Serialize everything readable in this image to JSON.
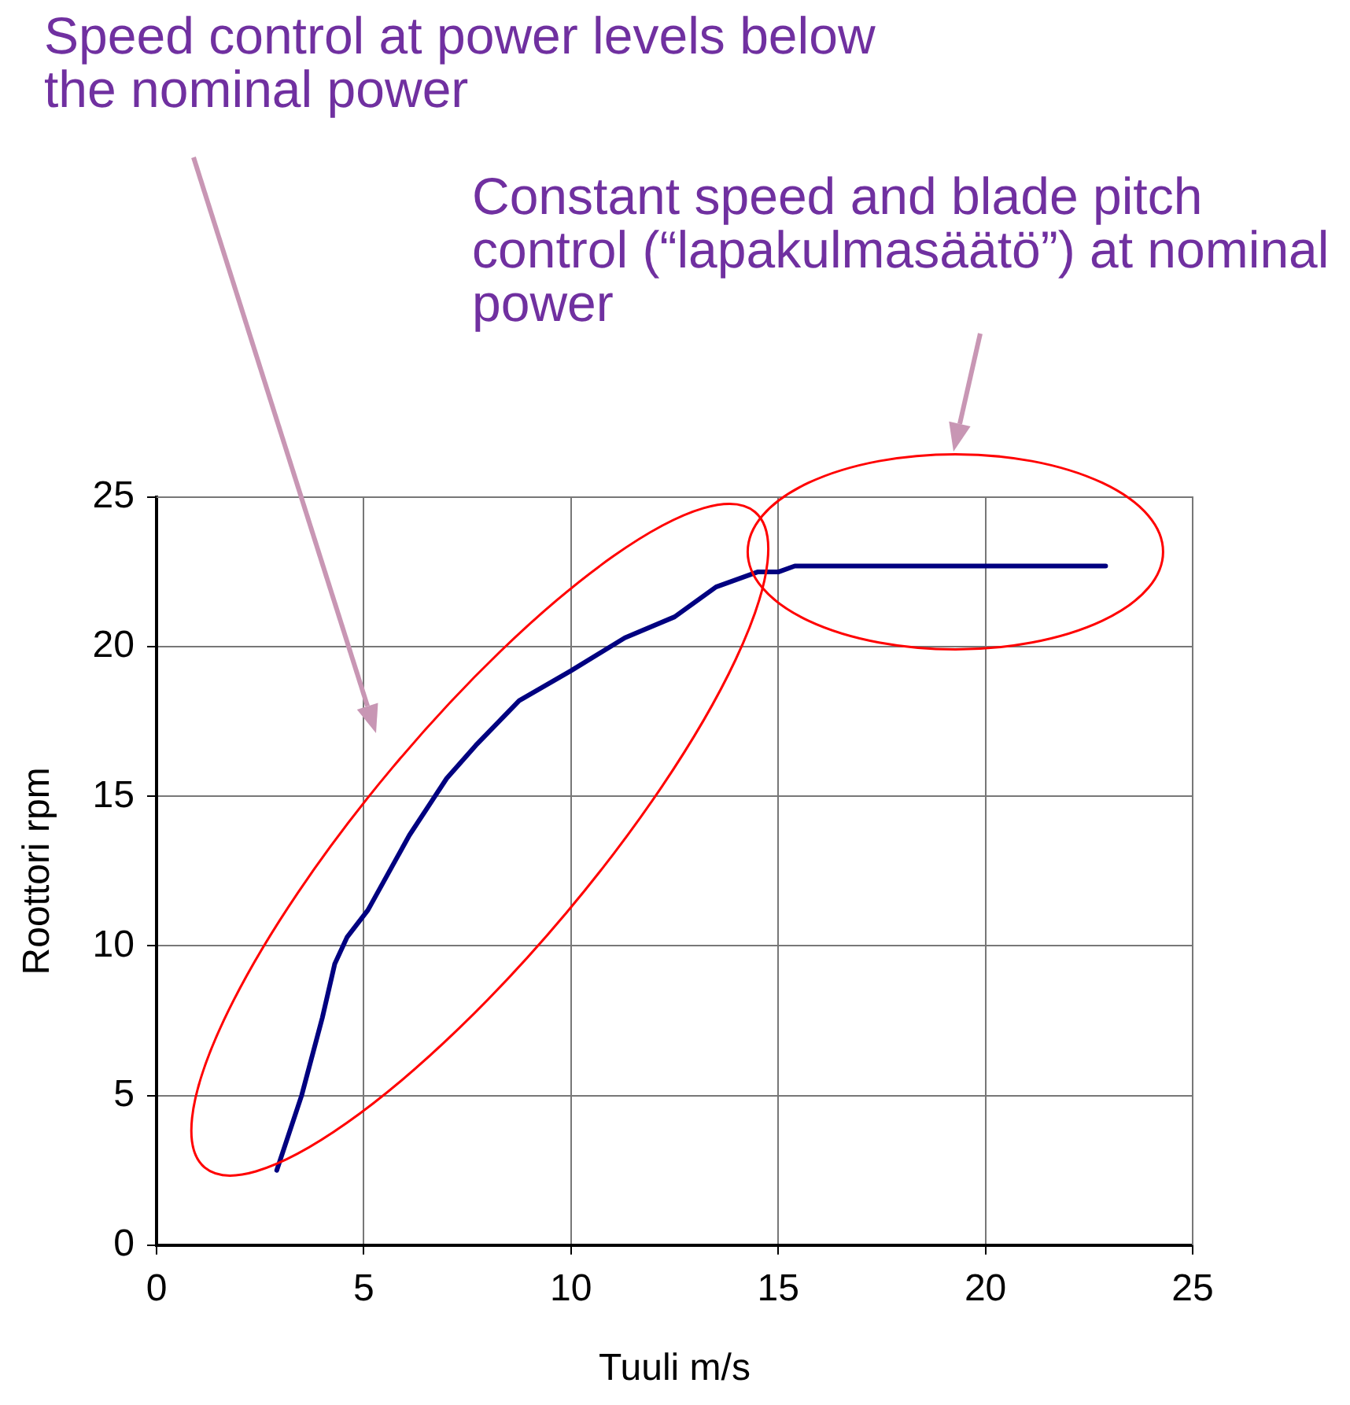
{
  "chart_data": {
    "type": "line",
    "xlabel": "Tuuli m/s",
    "ylabel": "Roottori rpm",
    "annotations": [
      "Speed control at power levels below the nominal power",
      "Constant speed and blade pitch control (“lapakulmasäätö”) at nominal power"
    ],
    "series": [
      {
        "color": "#000080",
        "x": [
          2.9,
          3.5,
          4.0,
          4.3,
          4.6,
          5.1,
          6.1,
          7.0,
          7.7,
          8.75,
          10.0,
          11.3,
          12.5,
          13.5,
          14.5,
          15.0,
          15.4,
          22.9
        ],
        "values": [
          2.5,
          5,
          7.6,
          9.4,
          10.3,
          11.2,
          13.7,
          15.6,
          16.7,
          18.2,
          19.2,
          20.3,
          21.0,
          22.0,
          22.5,
          22.5,
          22.7,
          22.7
        ]
      }
    ],
    "xlim": [
      0,
      25
    ],
    "xticks": [
      0,
      5,
      10,
      15,
      20,
      25
    ],
    "ylim": [
      0,
      25
    ],
    "yticks": [
      0,
      5,
      10,
      15,
      20,
      25
    ],
    "grid": true,
    "legend": false,
    "marker": "none",
    "line_style": "solid"
  }
}
